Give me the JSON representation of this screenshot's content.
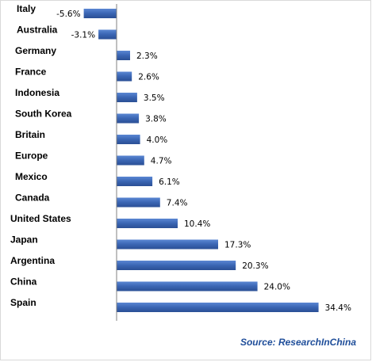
{
  "chart_data": {
    "type": "bar",
    "orientation": "horizontal",
    "categories": [
      "Italy",
      "Australia",
      "Germany",
      "France",
      "Indonesia",
      "South Korea",
      "Britain",
      "Europe",
      "Mexico",
      "Canada",
      "United States",
      "Japan",
      "Argentina",
      "China",
      "Spain"
    ],
    "values": [
      -5.6,
      -3.1,
      2.3,
      2.6,
      3.5,
      3.8,
      4.0,
      4.7,
      6.1,
      7.4,
      10.4,
      17.3,
      20.3,
      24.0,
      34.4
    ],
    "value_labels": [
      "-5.6%",
      "-3.1%",
      "2.3%",
      "2.6%",
      "3.5%",
      "3.8%",
      "4.0%",
      "4.7%",
      "6.1%",
      "7.4%",
      "10.4%",
      "17.3%",
      "20.3%",
      "24.0%",
      "34.4%"
    ],
    "xlim": [
      -7,
      35
    ],
    "bar_color": "#3a65b3",
    "grid": false,
    "legend": "none"
  },
  "source": "Source: ResearchInChina"
}
